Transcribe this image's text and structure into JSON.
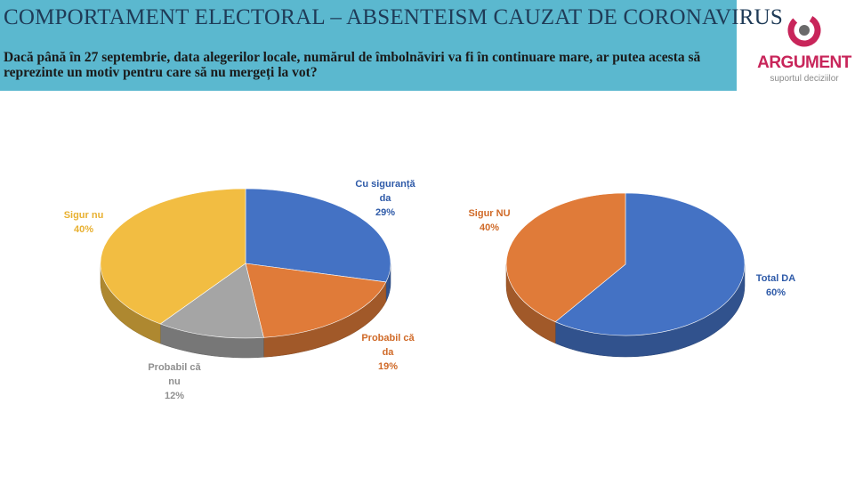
{
  "header": {
    "title": "COMPORTAMENT ELECTORAL – ABSENTEISM CAUZAT DE CORONAVIRUS",
    "question": "Dacă până în 27 septembrie, data alegerilor locale, numărul de îmbolnăviri va fi în continuare mare, ar putea acesta să reprezinte un motiv pentru care să nu mergeți la vot?"
  },
  "logo": {
    "name": "ARGUMENT",
    "tagline": "suportul deciziilor",
    "icon": "ring-logo-icon",
    "colors": {
      "ring": "#c8255a",
      "dot": "#6a6a6a"
    }
  },
  "chart_data": [
    {
      "type": "pie",
      "style": "3d",
      "categories": [
        "Cu siguranță da",
        "Probabil că da",
        "Probabil că nu",
        "Sigur nu"
      ],
      "values": [
        29,
        19,
        12,
        40
      ],
      "labels": [
        {
          "lines": [
            "Cu siguranță",
            "da"
          ],
          "value": "29%"
        },
        {
          "lines": [
            "Probabil că",
            "da"
          ],
          "value": "19%"
        },
        {
          "lines": [
            "Probabil că",
            "nu"
          ],
          "value": "12%"
        },
        {
          "lines": [
            "Sigur nu"
          ],
          "value": "40%"
        }
      ],
      "colors": [
        "#4472c4",
        "#e07b39",
        "#a5a5a5",
        "#f2bd42"
      ],
      "label_colors": [
        "#2e5aa8",
        "#d06a28",
        "#8f8f8f",
        "#e8b030"
      ]
    },
    {
      "type": "pie",
      "style": "3d",
      "categories": [
        "Total DA",
        "Sigur NU"
      ],
      "values": [
        60,
        40
      ],
      "labels": [
        {
          "lines": [
            "Total DA"
          ],
          "value": "60%"
        },
        {
          "lines": [
            "Sigur NU"
          ],
          "value": "40%"
        }
      ],
      "colors": [
        "#4472c4",
        "#e07b39"
      ],
      "label_colors": [
        "#2e5aa8",
        "#d06a28"
      ]
    }
  ]
}
